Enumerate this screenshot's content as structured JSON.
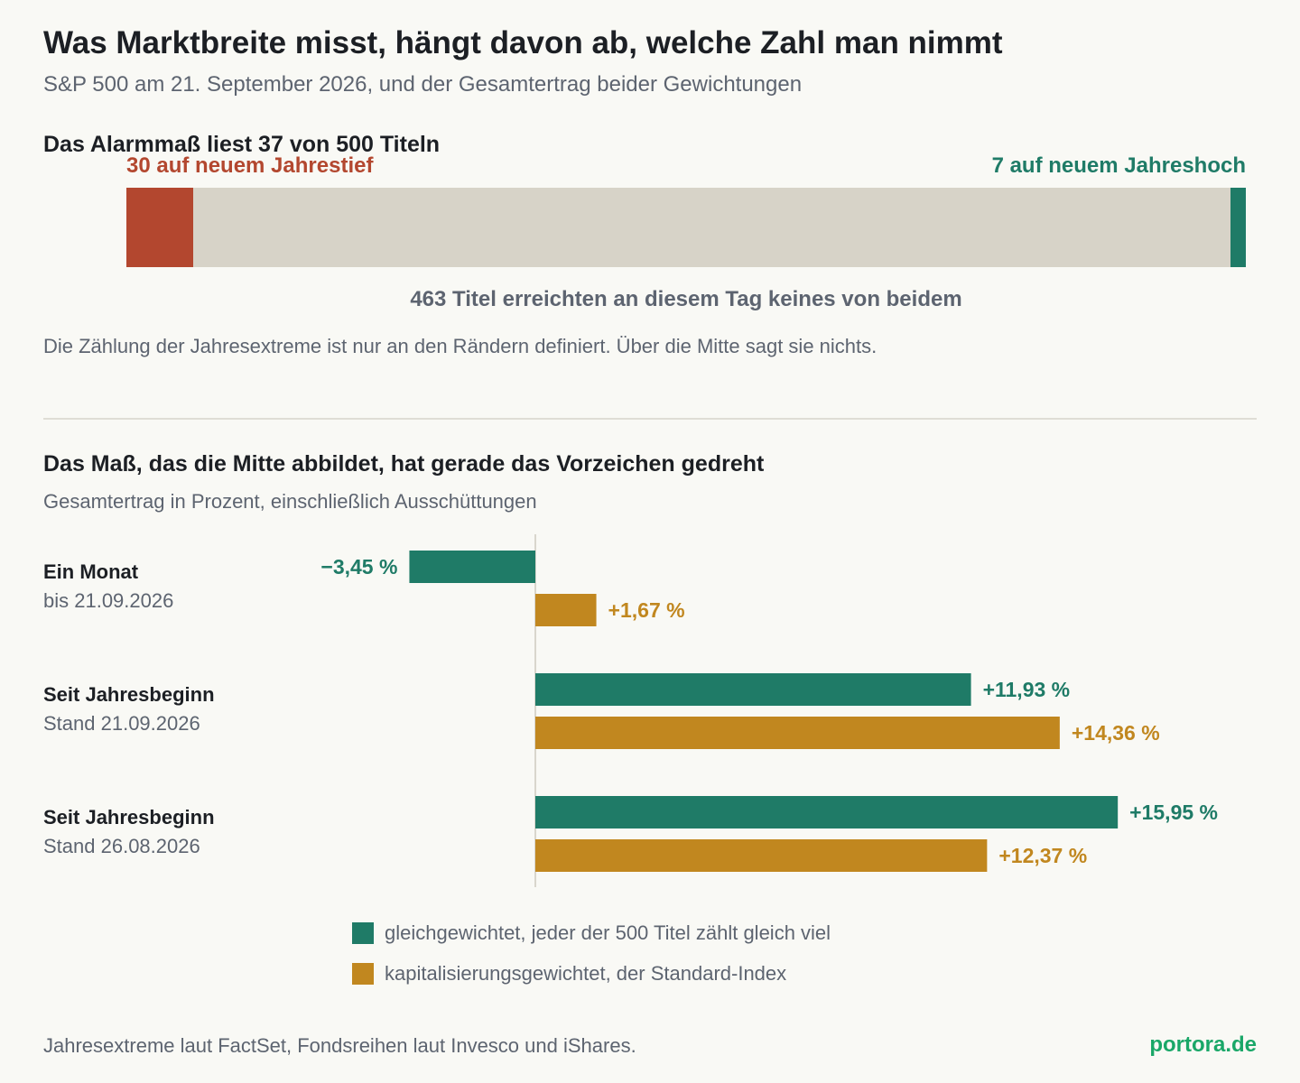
{
  "title": "Was Marktbreite misst, hängt davon ab, welche Zahl man nimmt",
  "subtitle": "S&P 500 am 21. September 2026, und der Gesamtertrag beider Gewichtungen",
  "colors": {
    "equal": "#1f7b67",
    "cap": "#c1871f",
    "low": "#b3472f",
    "neutral": "#d7d3c8",
    "brand": "#1aa768"
  },
  "section1": {
    "title": "Das Alarmmaß liest 37 von 500 Titeln",
    "low_label": "30 auf neuem Jahrestief",
    "high_label": "7 auf neuem Jahreshoch",
    "middle_label": "463 Titel erreichten an diesem Tag keines von beidem",
    "note": "Die Zählung der Jahresextreme ist nur an den Rändern definiert. Über die Mitte sagt sie nichts."
  },
  "section2": {
    "title": "Das Maß, das die Mitte abbildet, hat gerade das Vorzeichen gedreht",
    "subtitle": "Gesamtertrag in Prozent, einschließlich Ausschüttungen"
  },
  "chart_data": [
    {
      "type": "bar",
      "orientation": "horizontal-stacked",
      "total": 500,
      "categories": [
        "auf neuem Jahrestief",
        "keines von beidem",
        "auf neuem Jahreshoch"
      ],
      "values": [
        30,
        463,
        7
      ]
    },
    {
      "type": "bar",
      "orientation": "horizontal",
      "unit": "%",
      "categories": [
        {
          "title": "Ein Monat",
          "date": "bis 21.09.2026"
        },
        {
          "title": "Seit Jahresbeginn",
          "date": "Stand 21.09.2026"
        },
        {
          "title": "Seit Jahresbeginn",
          "date": "Stand 26.08.2026"
        }
      ],
      "series": [
        {
          "name": "gleichgewichtet, jeder der 500 Titel zählt gleich viel",
          "values": [
            -3.45,
            11.93,
            15.95
          ],
          "labels": [
            "−3,45 %",
            "+11,93 %",
            "+15,95 %"
          ]
        },
        {
          "name": "kapitalisierungsgewichtet, der Standard-Index",
          "values": [
            1.67,
            14.36,
            12.37
          ],
          "labels": [
            "+1,67 %",
            "+14,36 %",
            "+12,37 %"
          ]
        }
      ],
      "legend": "bottom"
    }
  ],
  "footer": {
    "source": "Jahresextreme laut FactSet, Fondsreihen laut Invesco und iShares.",
    "brand": "portora.de"
  }
}
